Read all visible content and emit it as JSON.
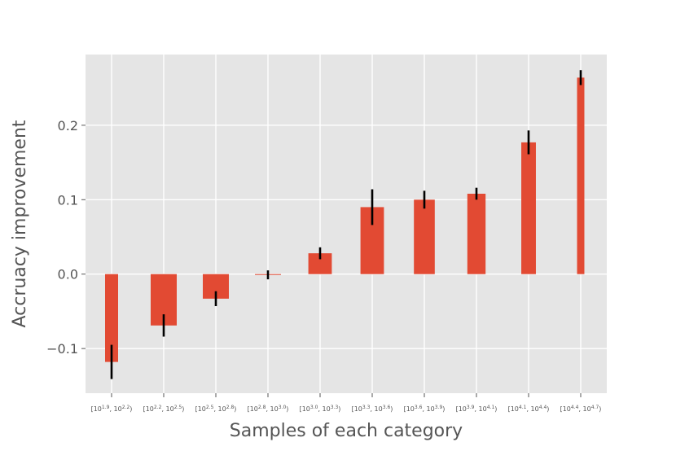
{
  "chart_data": {
    "type": "bar",
    "style": "ggplot",
    "xlabel": "Samples of each category",
    "ylabel": "Accruacy improvement",
    "categories": [
      {
        "base1": "10",
        "exp1": "1.9",
        "base2": "10",
        "exp2": "2.2"
      },
      {
        "base1": "10",
        "exp1": "2.2",
        "base2": "10",
        "exp2": "2.5"
      },
      {
        "base1": "10",
        "exp1": "2.5",
        "base2": "10",
        "exp2": "2.8"
      },
      {
        "base1": "10",
        "exp1": "2.8",
        "base2": "10",
        "exp2": "3.0"
      },
      {
        "base1": "10",
        "exp1": "3.0",
        "base2": "10",
        "exp2": "3.3"
      },
      {
        "base1": "10",
        "exp1": "3.3",
        "base2": "10",
        "exp2": "3.6"
      },
      {
        "base1": "10",
        "exp1": "3.6",
        "base2": "10",
        "exp2": "3.9"
      },
      {
        "base1": "10",
        "exp1": "3.9",
        "base2": "10",
        "exp2": "4.1"
      },
      {
        "base1": "10",
        "exp1": "4.1",
        "base2": "10",
        "exp2": "4.4"
      },
      {
        "base1": "10",
        "exp1": "4.4",
        "base2": "10",
        "exp2": "4.7"
      }
    ],
    "values": [
      -0.118,
      -0.069,
      -0.033,
      -0.001,
      0.028,
      0.09,
      0.1,
      0.108,
      0.177,
      0.264
    ],
    "errors": [
      0.023,
      0.015,
      0.01,
      0.006,
      0.008,
      0.024,
      0.012,
      0.008,
      0.016,
      0.01
    ],
    "bar_widths": [
      0.25,
      0.5,
      0.5,
      0.5,
      0.45,
      0.45,
      0.4,
      0.35,
      0.28,
      0.14
    ],
    "ylim": [
      -0.16,
      0.295
    ],
    "yticks": [
      -0.1,
      0.0,
      0.1,
      0.2
    ],
    "ytick_labels": [
      "−0.1",
      "0.0",
      "0.1",
      "0.2"
    ],
    "grid": true,
    "colors": {
      "bar": "#E24A33",
      "error_bar": "#000000",
      "plot_background": "#E5E5E5",
      "grid": "#FFFFFF",
      "text": "#555555"
    }
  }
}
